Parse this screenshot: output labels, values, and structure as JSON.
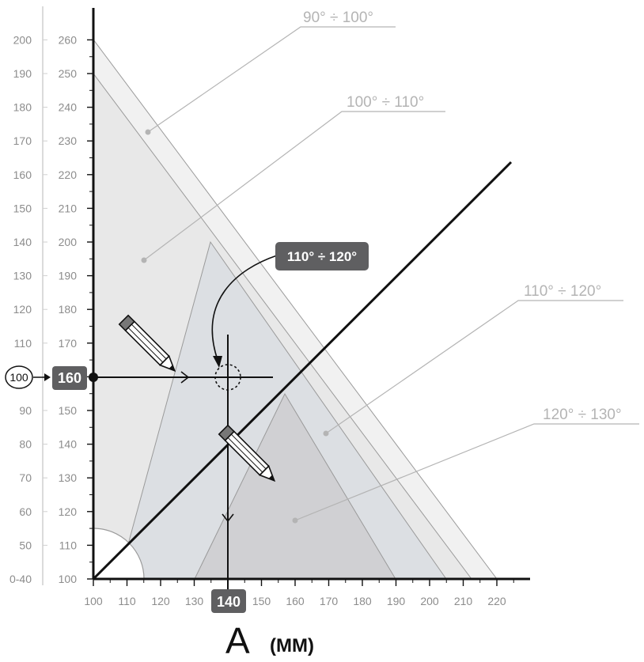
{
  "diagram": {
    "x_axis": {
      "ticks": [
        "100",
        "110",
        "120",
        "130",
        "140",
        "150",
        "160",
        "170",
        "180",
        "190",
        "200",
        "210",
        "220"
      ],
      "label_main": "A",
      "label_unit": "(MM)"
    },
    "y_axis_inner": {
      "ticks": [
        "100",
        "110",
        "120",
        "130",
        "140",
        "150",
        "160",
        "170",
        "180",
        "190",
        "200",
        "210",
        "220",
        "230",
        "240",
        "250",
        "260"
      ]
    },
    "y_axis_outer": {
      "ticks": [
        "0-40",
        "50",
        "60",
        "70",
        "80",
        "90",
        "100",
        "110",
        "120",
        "130",
        "140",
        "150",
        "160",
        "170",
        "180",
        "190",
        "200"
      ]
    },
    "zones": [
      {
        "label": "90° ÷ 100°"
      },
      {
        "label": "100° ÷ 110°"
      },
      {
        "label": "110° ÷ 120°"
      },
      {
        "label": "120° ÷ 130°"
      }
    ],
    "callout": {
      "label": "110° ÷ 120°"
    },
    "markers": {
      "outer_value": "100",
      "inner_value": "160",
      "x_value": "140"
    },
    "colors": {
      "axis": "#111111",
      "zone_90_100": "#f1f1f1",
      "zone_100_110": "#e6e6e6",
      "zone_110_120": "#dadde1",
      "zone_120_130": "#cfcfd2",
      "label_box": "#5f5f61",
      "legend_text": "#b4b4b4"
    }
  }
}
